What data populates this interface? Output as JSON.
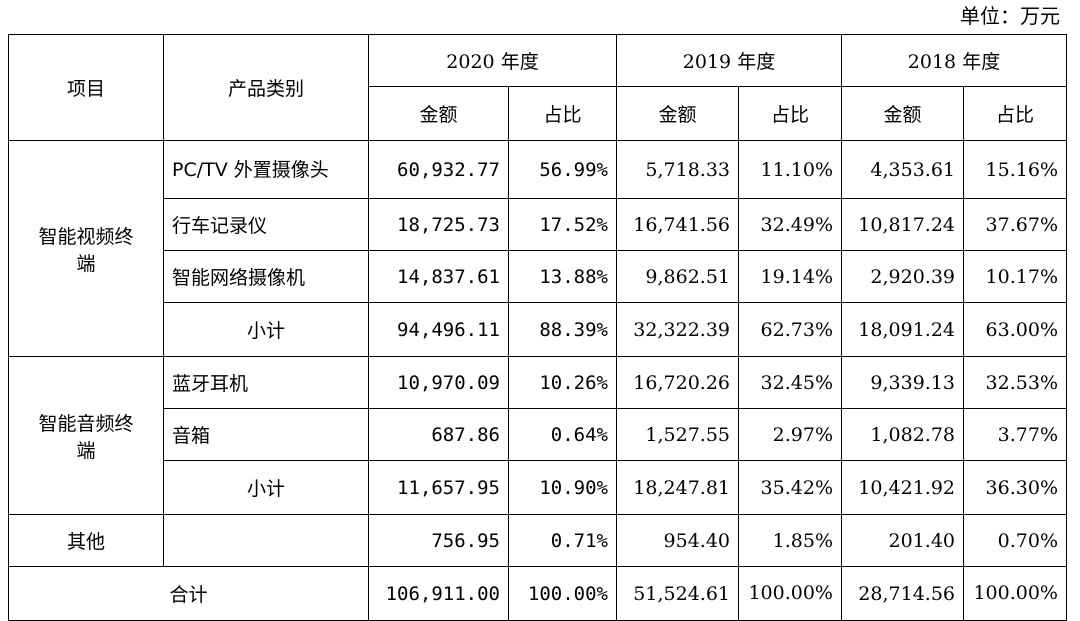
{
  "unit_label": "单位：万元",
  "headers": {
    "item": "项目",
    "category": "产品类别",
    "years": [
      "2020 年度",
      "2019 年度",
      "2018 年度"
    ],
    "amount": "金额",
    "ratio": "占比"
  },
  "groups": {
    "video": {
      "label": "智能视频终端",
      "rows": [
        {
          "name": "PC/TV 外置摄像头",
          "v2020": "60,932.77",
          "p2020": "56.99%",
          "v2019": "5,718.33",
          "p2019": "11.10%",
          "v2018": "4,353.61",
          "p2018": "15.16%"
        },
        {
          "name": "行车记录仪",
          "v2020": "18,725.73",
          "p2020": "17.52%",
          "v2019": "16,741.56",
          "p2019": "32.49%",
          "v2018": "10,817.24",
          "p2018": "37.67%"
        },
        {
          "name": "智能网络摄像机",
          "v2020": "14,837.61",
          "p2020": "13.88%",
          "v2019": "9,862.51",
          "p2019": "19.14%",
          "v2018": "2,920.39",
          "p2018": "10.17%"
        }
      ],
      "subtotal": {
        "name": "小计",
        "v2020": "94,496.11",
        "p2020": "88.39%",
        "v2019": "32,322.39",
        "p2019": "62.73%",
        "v2018": "18,091.24",
        "p2018": "63.00%"
      }
    },
    "audio": {
      "label": "智能音频终端",
      "rows": [
        {
          "name": "蓝牙耳机",
          "v2020": "10,970.09",
          "p2020": "10.26%",
          "v2019": "16,720.26",
          "p2019": "32.45%",
          "v2018": "9,339.13",
          "p2018": "32.53%"
        },
        {
          "name": "音箱",
          "v2020": "687.86",
          "p2020": "0.64%",
          "v2019": "1,527.55",
          "p2019": "2.97%",
          "v2018": "1,082.78",
          "p2018": "3.77%"
        }
      ],
      "subtotal": {
        "name": "小计",
        "v2020": "11,657.95",
        "p2020": "10.90%",
        "v2019": "18,247.81",
        "p2019": "35.42%",
        "v2018": "10,421.92",
        "p2018": "36.30%"
      }
    }
  },
  "other": {
    "name": "其他",
    "v2020": "756.95",
    "p2020": "0.71%",
    "v2019": "954.40",
    "p2019": "1.85%",
    "v2018": "201.40",
    "p2018": "0.70%"
  },
  "total": {
    "name": "合计",
    "v2020": "106,911.00",
    "p2020": "100.00%",
    "v2019": "51,524.61",
    "p2019": "100.00%",
    "v2018": "28,714.56",
    "p2018": "100.00%"
  }
}
